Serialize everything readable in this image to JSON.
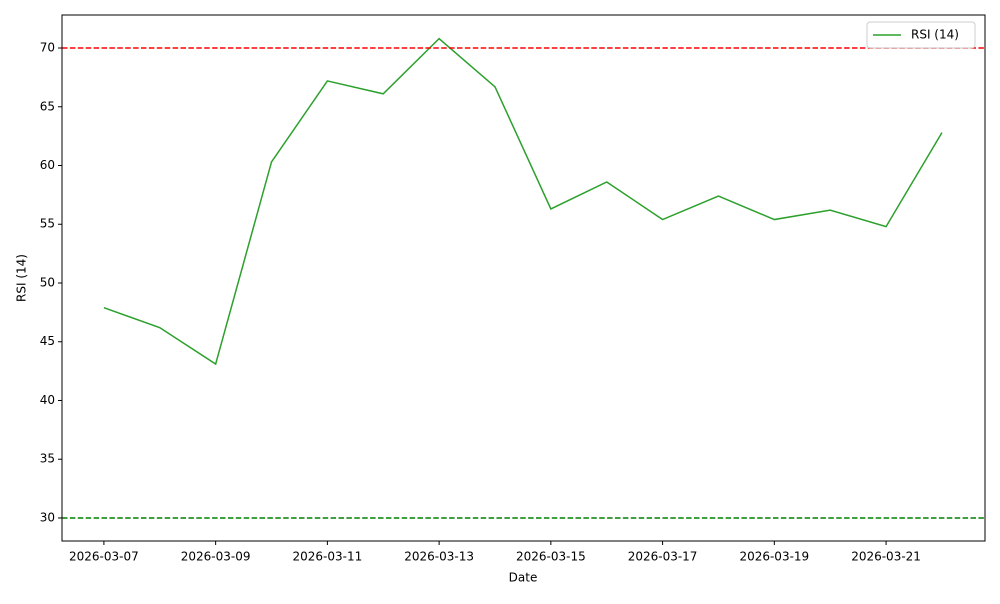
{
  "chart_data": {
    "type": "line",
    "x_label": "Date",
    "y_label": "RSI (14)",
    "x": [
      "2026-03-07",
      "2026-03-08",
      "2026-03-09",
      "2026-03-10",
      "2026-03-11",
      "2026-03-12",
      "2026-03-13",
      "2026-03-14",
      "2026-03-15",
      "2026-03-16",
      "2026-03-17",
      "2026-03-18",
      "2026-03-19",
      "2026-03-20",
      "2026-03-21",
      "2026-03-22"
    ],
    "series": [
      {
        "name": "RSI (14)",
        "color": "#2ca02c",
        "values": [
          47.9,
          46.2,
          43.1,
          60.3,
          67.2,
          66.1,
          70.8,
          66.7,
          56.3,
          58.6,
          55.4,
          57.4,
          55.4,
          56.2,
          54.8,
          62.8
        ]
      }
    ],
    "hlines": [
      {
        "value": 70,
        "color": "red"
      },
      {
        "value": 30,
        "color": "green"
      }
    ],
    "xlim": [
      "2026-03-06T06:00",
      "2026-03-22T18:30"
    ],
    "xticks": [
      "2026-03-07",
      "2026-03-09",
      "2026-03-11",
      "2026-03-13",
      "2026-03-15",
      "2026-03-17",
      "2026-03-19",
      "2026-03-21"
    ],
    "ylim": [
      28.04,
      72.81
    ],
    "yticks": [
      30,
      35,
      40,
      45,
      50,
      55,
      60,
      65,
      70
    ],
    "legend": "upper right"
  }
}
